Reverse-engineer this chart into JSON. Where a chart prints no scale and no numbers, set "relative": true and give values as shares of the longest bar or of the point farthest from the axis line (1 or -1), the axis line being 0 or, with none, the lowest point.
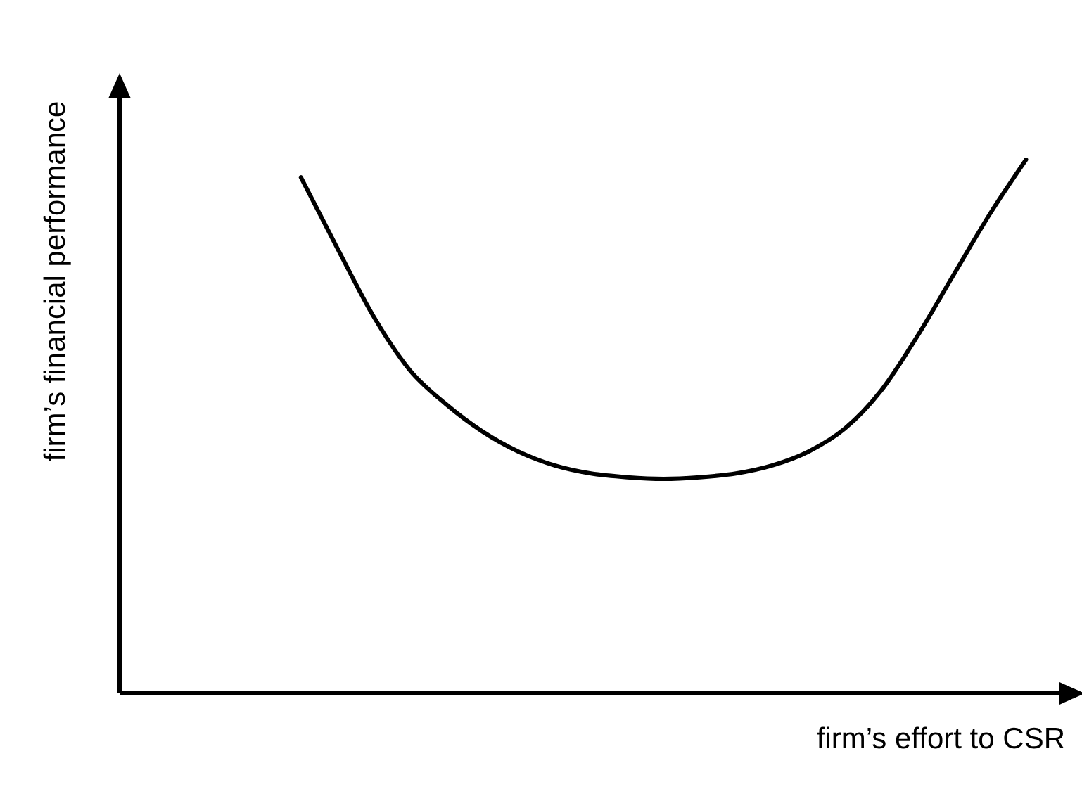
{
  "chart_data": {
    "type": "line",
    "relative": true,
    "xlabel": "firm’s effort to CSR",
    "ylabel": "firm’s financial performance",
    "categories": [
      null,
      null,
      null,
      null,
      null,
      null,
      null,
      null,
      null,
      null,
      null,
      null,
      null,
      null,
      null,
      null,
      null,
      null,
      null,
      null,
      null,
      null,
      null,
      null,
      null,
      null,
      null
    ],
    "series": [
      {
        "color": "#000000",
        "values": [
          null,
          null,
          null,
          null,
          null,
          0.967,
          0.835,
          0.707,
          0.606,
          0.542,
          0.491,
          0.453,
          0.427,
          0.412,
          0.405,
          0.402,
          0.405,
          0.412,
          0.427,
          0.453,
          0.496,
          0.567,
          0.669,
          0.784,
          0.898,
          1,
          null
        ]
      }
    ]
  }
}
